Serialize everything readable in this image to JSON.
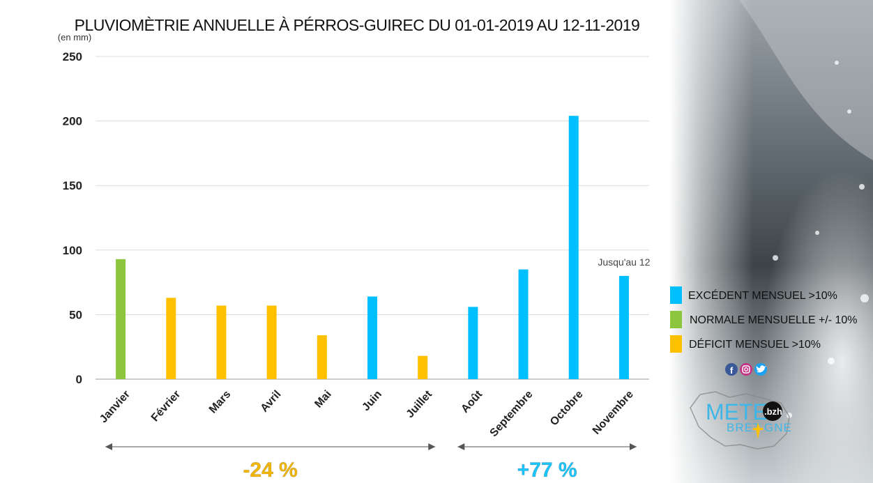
{
  "chart_data": {
    "type": "bar",
    "title": "PLUVIOMÈTRIE ANNUELLE À PÉRROS-GUIREC DU 01-01-2019 AU 12-11-2019",
    "ylabel": "(en mm)",
    "ylim": [
      0,
      250
    ],
    "yticks": [
      "0",
      "50",
      "100",
      "150",
      "200",
      "250"
    ],
    "grid": true,
    "categories": [
      "Janvier",
      "Février",
      "Mars",
      "Avril",
      "Mai",
      "Juin",
      "Juillet",
      "Août",
      "Septembre",
      "Octobre",
      "Novembre"
    ],
    "values": [
      93,
      63,
      57,
      57,
      34,
      64,
      18,
      56,
      85,
      204,
      80
    ],
    "status": [
      "normale",
      "deficit",
      "deficit",
      "deficit",
      "deficit",
      "excedent",
      "deficit",
      "excedent",
      "excedent",
      "excedent",
      "excedent"
    ],
    "annotations": [
      {
        "category": "Novembre",
        "text": "Jusqu'au 12"
      }
    ],
    "periods": [
      {
        "from": "Janvier",
        "to": "Juillet",
        "text": "-24 %",
        "color": "#f5b800"
      },
      {
        "from": "Août",
        "to": "Novembre",
        "text": "+77 %",
        "color": "#19c6ff"
      }
    ],
    "legend": [
      {
        "key": "excedent",
        "label": "EXCÉDENT MENSUEL >10%"
      },
      {
        "key": "normale",
        "label": "NORMALE MENSUELLE +/- 10%"
      },
      {
        "key": "deficit",
        "label": "DÉFICIT MENSUEL >10%"
      }
    ],
    "legend_position": "right"
  },
  "colors": {
    "excedent": "#00bfff",
    "normale": "#8cc63f",
    "deficit": "#ffc000",
    "grid": "#dcdcdc",
    "axis": "#999999"
  },
  "social": [
    "facebook-icon",
    "instagram-icon",
    "twitter-icon"
  ],
  "logo": {
    "line1": "METE",
    "badge": ".bzh",
    "line2": "BRET",
    "line2_end": "GNE"
  }
}
